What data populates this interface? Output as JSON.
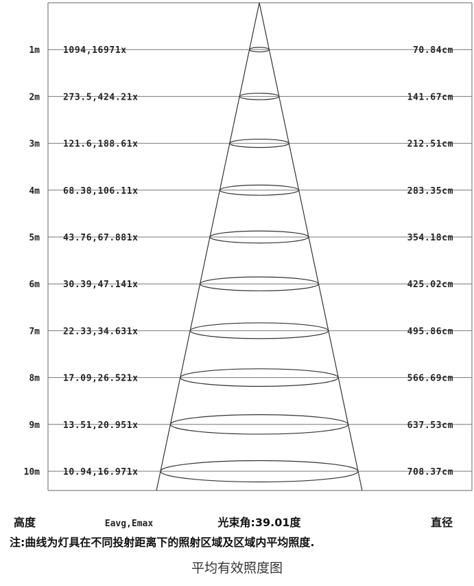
{
  "rows": [
    {
      "height": "1m",
      "illuminance": "1094,16971x",
      "diameter": "70.84cm"
    },
    {
      "height": "2m",
      "illuminance": "273.5,424.21x",
      "diameter": "141.67cm"
    },
    {
      "height": "3m",
      "illuminance": "121.6,188.61x",
      "diameter": "212.51cm"
    },
    {
      "height": "4m",
      "illuminance": "68.38,106.11x",
      "diameter": "283.35cm"
    },
    {
      "height": "5m",
      "illuminance": "43.76,67.881x",
      "diameter": "354.18cm"
    },
    {
      "height": "6m",
      "illuminance": "30.39,47.141x",
      "diameter": "425.02cm"
    },
    {
      "height": "7m",
      "illuminance": "22.33,34.631x",
      "diameter": "495.86cm"
    },
    {
      "height": "8m",
      "illuminance": "17.09,26.521x",
      "diameter": "566.69cm"
    },
    {
      "height": "9m",
      "illuminance": "13.51,20.951x",
      "diameter": "637.53cm"
    },
    {
      "height": "10m",
      "illuminance": "10.94,16.971x",
      "diameter": "708.37cm"
    }
  ],
  "footer": {
    "height_label": "高度",
    "illum_label": "Eavg,Emax",
    "beam_angle": "光束角:39.01度",
    "diameter_label": "直径"
  },
  "note": "注:曲线为灯具在不同投射距离下的照射区域及区域内平均照度.",
  "caption": "平均有效照度图"
}
